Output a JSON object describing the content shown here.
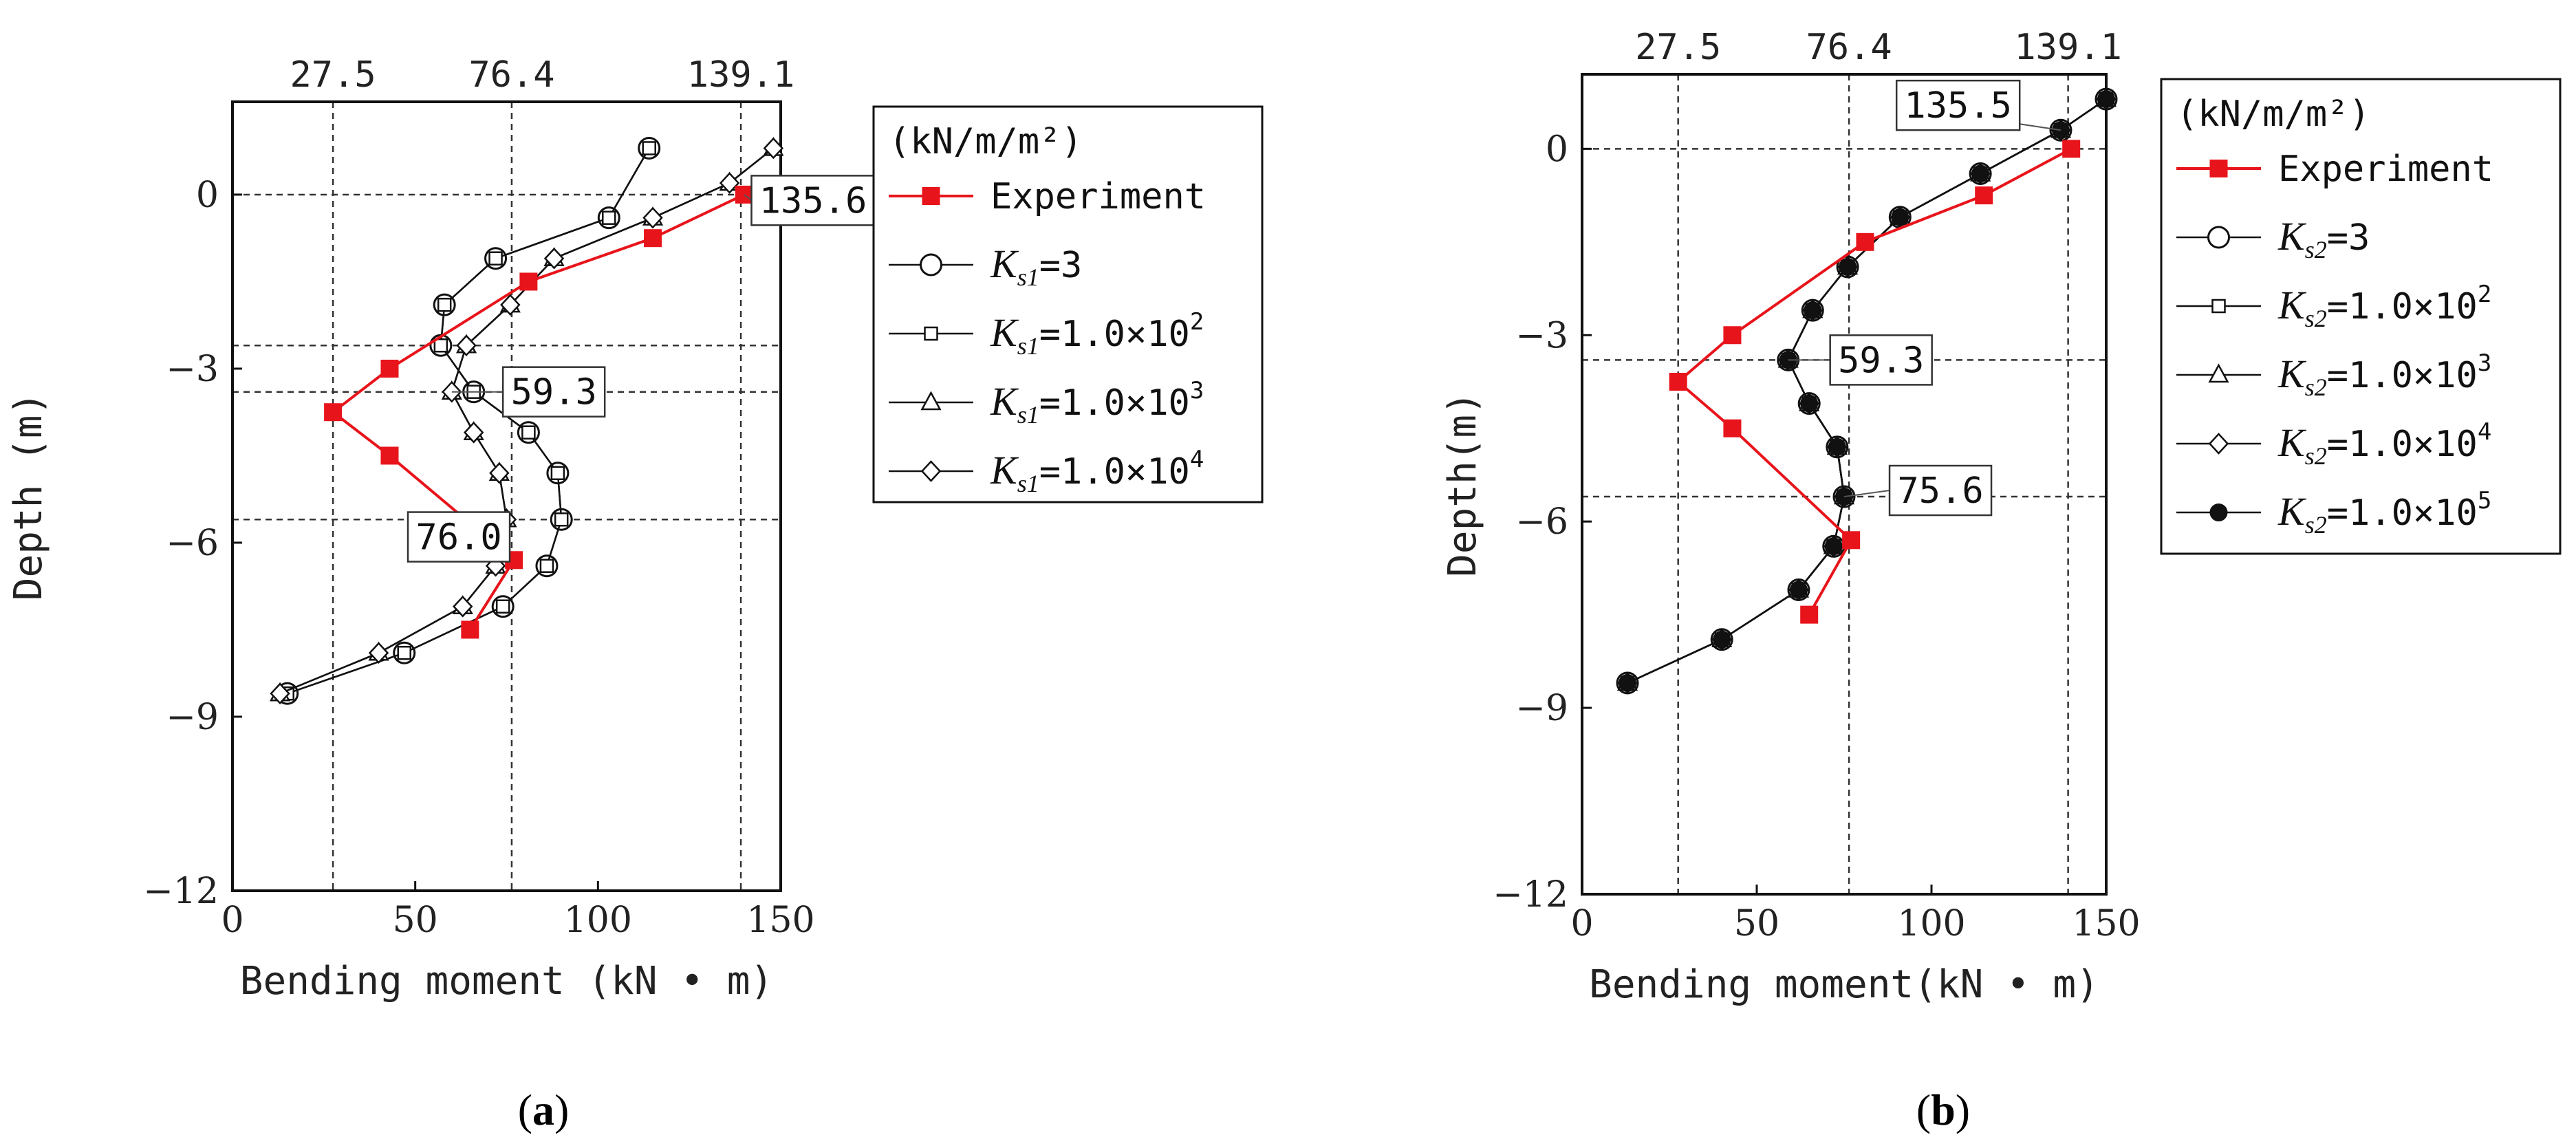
{
  "chart_data": [
    {
      "type": "line",
      "panel_label_prefix": "(",
      "panel_label_letter": "a",
      "panel_label_suffix": ")",
      "xlabel": "Bending moment (kN • m)",
      "ylabel": "Depth (m)",
      "xlim": [
        0,
        150
      ],
      "ylim": [
        -12,
        1.6
      ],
      "x_ticks": [
        "0",
        "50",
        "100",
        "150"
      ],
      "y_ticks": [
        "0",
        "-3",
        "-6",
        "-9",
        "-12"
      ],
      "top_ticks": [
        {
          "value": 27.5,
          "label": "27.5"
        },
        {
          "value": 76.4,
          "label": "76.4"
        },
        {
          "value": 139.1,
          "label": "139.1"
        }
      ],
      "hlines": [
        0,
        -2.6,
        -3.4,
        -5.6
      ],
      "legend_title": "(kN/m/m²)",
      "series": [
        {
          "name": "Experiment",
          "marker": "square",
          "color": "#e8141b",
          "points": [
            [
              140,
              0
            ],
            [
              115,
              -0.75
            ],
            [
              81,
              -1.5
            ],
            [
              43,
              -3.0
            ],
            [
              27.5,
              -3.75
            ],
            [
              43,
              -4.5
            ],
            [
              77,
              -6.3
            ],
            [
              65,
              -7.5
            ]
          ]
        },
        {
          "name": "Ks1=3",
          "sub": "s1",
          "exp": "",
          "coef": "3",
          "marker": "circle",
          "color": "#111",
          "points": [
            [
              114,
              0.8
            ],
            [
              103,
              -0.4
            ],
            [
              72,
              -1.1
            ],
            [
              58,
              -1.9
            ],
            [
              57,
              -2.6
            ],
            [
              66,
              -3.4
            ],
            [
              81,
              -4.1
            ],
            [
              89,
              -4.8
            ],
            [
              90,
              -5.6
            ],
            [
              86,
              -6.4
            ],
            [
              74,
              -7.1
            ],
            [
              47,
              -7.9
            ],
            [
              15,
              -8.6
            ]
          ]
        },
        {
          "name": "Ks1=1.0×10²",
          "sub": "s1",
          "coef": "1.0×10",
          "exp": "2",
          "marker": "square-open",
          "color": "#111",
          "points": [
            [
              114,
              0.8
            ],
            [
              103,
              -0.4
            ],
            [
              72,
              -1.1
            ],
            [
              58,
              -1.9
            ],
            [
              57,
              -2.6
            ],
            [
              66,
              -3.4
            ],
            [
              81,
              -4.1
            ],
            [
              89,
              -4.8
            ],
            [
              90,
              -5.6
            ],
            [
              86,
              -6.4
            ],
            [
              74,
              -7.1
            ],
            [
              47,
              -7.9
            ],
            [
              15,
              -8.6
            ]
          ]
        },
        {
          "name": "Ks1=1.0×10³",
          "sub": "s1",
          "coef": "1.0×10",
          "exp": "3",
          "marker": "triangle",
          "color": "#111",
          "points": [
            [
              148,
              0.8
            ],
            [
              136,
              0.2
            ],
            [
              115,
              -0.4
            ],
            [
              88,
              -1.1
            ],
            [
              76,
              -1.9
            ],
            [
              64,
              -2.6
            ],
            [
              60,
              -3.4
            ],
            [
              66,
              -4.1
            ],
            [
              73,
              -4.8
            ],
            [
              75,
              -5.6
            ],
            [
              72,
              -6.4
            ],
            [
              63,
              -7.1
            ],
            [
              40,
              -7.9
            ],
            [
              13,
              -8.6
            ]
          ]
        },
        {
          "name": "Ks1=1.0×10⁴",
          "sub": "s1",
          "coef": "1.0×10",
          "exp": "4",
          "marker": "diamond",
          "color": "#111",
          "points": [
            [
              148,
              0.8
            ],
            [
              136,
              0.2
            ],
            [
              115,
              -0.4
            ],
            [
              88,
              -1.1
            ],
            [
              76,
              -1.9
            ],
            [
              64,
              -2.6
            ],
            [
              60,
              -3.4
            ],
            [
              66,
              -4.1
            ],
            [
              73,
              -4.8
            ],
            [
              75,
              -5.6
            ],
            [
              72,
              -6.4
            ],
            [
              63,
              -7.1
            ],
            [
              40,
              -7.9
            ],
            [
              13,
              -8.6
            ]
          ]
        }
      ],
      "callouts": [
        {
          "text": "135.6",
          "x": 140,
          "y": 0,
          "box_x": 142,
          "box_y": -0.1
        },
        {
          "text": "59.3",
          "x": 60,
          "y": -3.4,
          "box_x": 74,
          "box_y": -3.4
        },
        {
          "text": "76.0",
          "x": 75,
          "y": -5.6,
          "box_x": 48,
          "box_y": -5.9
        }
      ]
    },
    {
      "type": "line",
      "panel_label_prefix": "(",
      "panel_label_letter": "b",
      "panel_label_suffix": ")",
      "xlabel": "Bending moment(kN • m)",
      "ylabel": "Depth(m)",
      "xlim": [
        0,
        150
      ],
      "ylim": [
        -12,
        1.2
      ],
      "x_ticks": [
        "0",
        "50",
        "100",
        "150"
      ],
      "y_ticks": [
        "0",
        "-3",
        "-6",
        "-9",
        "-12"
      ],
      "top_ticks": [
        {
          "value": 27.5,
          "label": "27.5"
        },
        {
          "value": 76.4,
          "label": "76.4"
        },
        {
          "value": 139.1,
          "label": "139.1"
        }
      ],
      "hlines": [
        0,
        -3.4,
        -5.6
      ],
      "legend_title": "(kN/m/m²)",
      "series": [
        {
          "name": "Experiment",
          "marker": "square",
          "color": "#e8141b",
          "points": [
            [
              140,
              0
            ],
            [
              115,
              -0.75
            ],
            [
              81,
              -1.5
            ],
            [
              43,
              -3.0
            ],
            [
              27.5,
              -3.75
            ],
            [
              43,
              -4.5
            ],
            [
              77,
              -6.3
            ],
            [
              65,
              -7.5
            ]
          ]
        },
        {
          "name": "Ks2=3",
          "sub": "s2",
          "coef": "3",
          "exp": "",
          "marker": "circle",
          "color": "#111",
          "points": [
            [
              150,
              0.8
            ],
            [
              137,
              0.3
            ],
            [
              114,
              -0.4
            ],
            [
              91,
              -1.1
            ],
            [
              76,
              -1.9
            ],
            [
              66,
              -2.6
            ],
            [
              59,
              -3.4
            ],
            [
              65,
              -4.1
            ],
            [
              73,
              -4.8
            ],
            [
              75,
              -5.6
            ],
            [
              72,
              -6.4
            ],
            [
              62,
              -7.1
            ],
            [
              40,
              -7.9
            ],
            [
              13,
              -8.6
            ]
          ]
        },
        {
          "name": "Ks2=1.0×10²",
          "sub": "s2",
          "coef": "1.0×10",
          "exp": "2",
          "marker": "square-open",
          "color": "#111",
          "points": [
            [
              150,
              0.8
            ],
            [
              137,
              0.3
            ],
            [
              114,
              -0.4
            ],
            [
              91,
              -1.1
            ],
            [
              76,
              -1.9
            ],
            [
              66,
              -2.6
            ],
            [
              59,
              -3.4
            ],
            [
              65,
              -4.1
            ],
            [
              73,
              -4.8
            ],
            [
              75,
              -5.6
            ],
            [
              72,
              -6.4
            ],
            [
              62,
              -7.1
            ],
            [
              40,
              -7.9
            ],
            [
              13,
              -8.6
            ]
          ]
        },
        {
          "name": "Ks2=1.0×10³",
          "sub": "s2",
          "coef": "1.0×10",
          "exp": "3",
          "marker": "triangle",
          "color": "#111",
          "points": [
            [
              150,
              0.8
            ],
            [
              137,
              0.3
            ],
            [
              114,
              -0.4
            ],
            [
              91,
              -1.1
            ],
            [
              76,
              -1.9
            ],
            [
              66,
              -2.6
            ],
            [
              59,
              -3.4
            ],
            [
              65,
              -4.1
            ],
            [
              73,
              -4.8
            ],
            [
              75,
              -5.6
            ],
            [
              72,
              -6.4
            ],
            [
              62,
              -7.1
            ],
            [
              40,
              -7.9
            ],
            [
              13,
              -8.6
            ]
          ]
        },
        {
          "name": "Ks2=1.0×10⁴",
          "sub": "s2",
          "coef": "1.0×10",
          "exp": "4",
          "marker": "diamond",
          "color": "#111",
          "points": [
            [
              150,
              0.8
            ],
            [
              137,
              0.3
            ],
            [
              114,
              -0.4
            ],
            [
              91,
              -1.1
            ],
            [
              76,
              -1.9
            ],
            [
              66,
              -2.6
            ],
            [
              59,
              -3.4
            ],
            [
              65,
              -4.1
            ],
            [
              73,
              -4.8
            ],
            [
              75,
              -5.6
            ],
            [
              72,
              -6.4
            ],
            [
              62,
              -7.1
            ],
            [
              40,
              -7.9
            ],
            [
              13,
              -8.6
            ]
          ]
        },
        {
          "name": "Ks2=1.0×10⁵",
          "sub": "s2",
          "coef": "1.0×10",
          "exp": "5",
          "marker": "dot",
          "color": "#111",
          "points": [
            [
              150,
              0.8
            ],
            [
              137,
              0.3
            ],
            [
              114,
              -0.4
            ],
            [
              91,
              -1.1
            ],
            [
              76,
              -1.9
            ],
            [
              66,
              -2.6
            ],
            [
              59,
              -3.4
            ],
            [
              65,
              -4.1
            ],
            [
              73,
              -4.8
            ],
            [
              75,
              -5.6
            ],
            [
              72,
              -6.4
            ],
            [
              62,
              -7.1
            ],
            [
              40,
              -7.9
            ],
            [
              13,
              -8.6
            ]
          ]
        }
      ],
      "callouts": [
        {
          "text": "135.5",
          "x": 137,
          "y": 0.3,
          "box_x": 90,
          "box_y": 0.7
        },
        {
          "text": "59.3",
          "x": 59,
          "y": -3.4,
          "box_x": 71,
          "box_y": -3.4
        },
        {
          "text": "75.6",
          "x": 75,
          "y": -5.6,
          "box_x": 88,
          "box_y": -5.5
        }
      ]
    }
  ]
}
